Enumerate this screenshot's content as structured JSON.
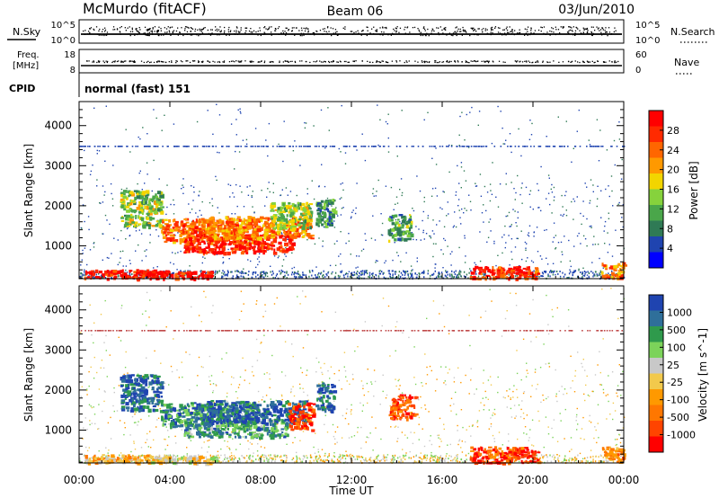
{
  "header": {
    "station": "McMurdo (fitACF)",
    "beam": "Beam 06",
    "date": "03/Jun/2010"
  },
  "noise_panel": {
    "left_label": "N.Sky",
    "right_label": "N.Search",
    "left_ticks": [
      "10^5",
      "10^0"
    ],
    "right_ticks": [
      "10^5",
      "10^0"
    ]
  },
  "freq_panel": {
    "left_label_1": "Freq.",
    "left_label_2": "[MHz]",
    "right_label": "Nave",
    "left_ticks": [
      "18",
      "8"
    ],
    "right_ticks": [
      "60",
      "0"
    ]
  },
  "cpid": {
    "label": "CPID",
    "value": "normal (fast) 151"
  },
  "x_axis": {
    "title": "Time UT",
    "ticks": [
      "00:00",
      "04:00",
      "08:00",
      "12:00",
      "16:00",
      "20:00",
      "00:00"
    ]
  },
  "chart_data": [
    {
      "type": "heatmap",
      "name": "power",
      "ylabel": "Slant Range [km]",
      "yticks": [
        1000,
        2000,
        3000,
        4000
      ],
      "ylim": [
        180,
        4600
      ],
      "xlim_hours": [
        0,
        24
      ],
      "colorbar": {
        "title": "Power [dB]",
        "ticks": [
          "28",
          "24",
          "20",
          "16",
          "12",
          "8",
          "4"
        ],
        "range": [
          0,
          32
        ],
        "colors": [
          "#0000ff",
          "#1f44b0",
          "#2f7a55",
          "#4aa64a",
          "#86d23c",
          "#f2d500",
          "#ff9900",
          "#ff6600",
          "#ff2a00",
          "#ff0000"
        ]
      },
      "regions": [
        {
          "t": [
            0.2,
            3.8
          ],
          "r": [
            200,
            420
          ],
          "level": 0.9
        },
        {
          "t": [
            2.3,
            6.0
          ],
          "r": [
            200,
            380
          ],
          "level": 0.95
        },
        {
          "t": [
            1.8,
            3.6
          ],
          "r": [
            1500,
            2400
          ],
          "level": 0.45
        },
        {
          "t": [
            3.6,
            7.8
          ],
          "r": [
            1100,
            1700
          ],
          "level": 0.75
        },
        {
          "t": [
            4.6,
            9.4
          ],
          "r": [
            850,
            1300
          ],
          "level": 0.9
        },
        {
          "t": [
            5.6,
            10.2
          ],
          "r": [
            1200,
            1750
          ],
          "level": 0.7
        },
        {
          "t": [
            8.4,
            10.2
          ],
          "r": [
            1450,
            2100
          ],
          "level": 0.45
        },
        {
          "t": [
            10.4,
            11.2
          ],
          "r": [
            1500,
            2200
          ],
          "level": 0.3
        },
        {
          "t": [
            13.6,
            14.6
          ],
          "r": [
            1150,
            1800
          ],
          "level": 0.35
        },
        {
          "t": [
            17.2,
            20.2
          ],
          "r": [
            200,
            500
          ],
          "level": 0.85
        },
        {
          "t": [
            23.0,
            24.0
          ],
          "r": [
            220,
            600
          ],
          "level": 0.7
        }
      ]
    },
    {
      "type": "heatmap",
      "name": "velocity",
      "ylabel": "Slant Range [km]",
      "yticks": [
        1000,
        2000,
        3000,
        4000
      ],
      "ylim": [
        180,
        4600
      ],
      "xlim_hours": [
        0,
        24
      ],
      "colorbar": {
        "title": "Velocity [m s^-1]",
        "ticks": [
          "1000",
          "500",
          "100",
          "25",
          "-25",
          "-100",
          "-500",
          "-1000"
        ],
        "colors": [
          "#ff0000",
          "#ff4400",
          "#ff7700",
          "#ff9900",
          "#f2c94c",
          "#c8c8c8",
          "#7cd35a",
          "#2f9a4c",
          "#2f6f9a",
          "#1f44b0"
        ]
      },
      "regions": [
        {
          "t": [
            0.2,
            3.6
          ],
          "r": [
            200,
            400
          ],
          "level": 0.4
        },
        {
          "t": [
            3.0,
            6.0
          ],
          "r": [
            200,
            380
          ],
          "level": 0.5
        },
        {
          "t": [
            1.8,
            3.6
          ],
          "r": [
            1500,
            2400
          ],
          "level": 0.9
        },
        {
          "t": [
            3.6,
            7.8
          ],
          "r": [
            1100,
            1700
          ],
          "level": 0.8
        },
        {
          "t": [
            4.6,
            9.2
          ],
          "r": [
            850,
            1300
          ],
          "level": 0.75
        },
        {
          "t": [
            5.6,
            10.0
          ],
          "r": [
            1200,
            1750
          ],
          "level": 0.9
        },
        {
          "t": [
            9.2,
            10.3
          ],
          "r": [
            1000,
            1700
          ],
          "level": 0.15
        },
        {
          "t": [
            10.4,
            11.2
          ],
          "r": [
            1500,
            2200
          ],
          "level": 0.9
        },
        {
          "t": [
            13.6,
            14.8
          ],
          "r": [
            1300,
            1900
          ],
          "level": 0.15
        },
        {
          "t": [
            17.2,
            20.2
          ],
          "r": [
            200,
            600
          ],
          "level": 0.15
        },
        {
          "t": [
            23.0,
            24.0
          ],
          "r": [
            220,
            600
          ],
          "level": 0.3
        }
      ]
    }
  ]
}
